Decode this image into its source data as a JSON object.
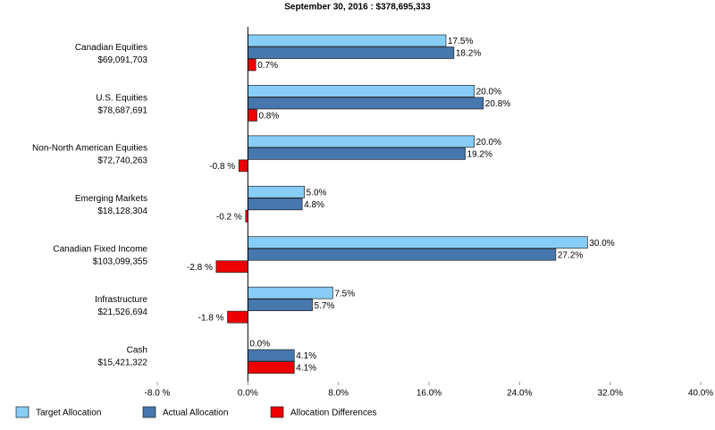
{
  "chart_data": {
    "type": "hbar",
    "title": "September 30, 2016 : $378,695,333",
    "categories": [
      "Canadian Equities",
      "U.S. Equities",
      "Non-North American Equities",
      "Emerging Markets",
      "Canadian Fixed Income",
      "Infrastructure",
      "Cash"
    ],
    "category_amounts": [
      "$69,091,703",
      "$78,687,691",
      "$72,740,263",
      "$18,128,304",
      "$103,099,355",
      "$21,526,694",
      "$15,421,322"
    ],
    "series": [
      {
        "name": "Target Allocation",
        "color": "#87cdf7",
        "values": [
          17.5,
          20.0,
          20.0,
          5.0,
          30.0,
          7.5,
          0.0
        ],
        "value_labels": [
          "17.5%",
          "20.0%",
          "20.0%",
          "5.0%",
          "30.0%",
          "7.5%",
          "0.0%"
        ]
      },
      {
        "name": "Actual Allocation",
        "color": "#4677ad",
        "values": [
          18.2,
          20.8,
          19.2,
          4.8,
          27.2,
          5.7,
          4.1
        ],
        "value_labels": [
          "18.2%",
          "20.8%",
          "19.2%",
          "4.8%",
          "27.2%",
          "5.7%",
          "4.1%"
        ]
      },
      {
        "name": "Allocation Differences",
        "color": "#ee0000",
        "values": [
          0.7,
          0.8,
          -0.8,
          -0.2,
          -2.8,
          -1.8,
          4.1
        ],
        "value_labels": [
          "0.7%",
          "0.8%",
          "-0.8 %",
          "-0.2 %",
          "-2.8 %",
          "-1.8 %",
          "4.1%"
        ]
      }
    ],
    "xlim": [
      -8,
      40
    ],
    "xticks": [
      {
        "value": -8,
        "label": "-8.0 %"
      },
      {
        "value": 0,
        "label": "0.0%"
      },
      {
        "value": 8,
        "label": "8.0%"
      },
      {
        "value": 16,
        "label": "16.0%"
      },
      {
        "value": 24,
        "label": "24.0%"
      },
      {
        "value": 32,
        "label": "32.0%"
      },
      {
        "value": 40,
        "label": "40.0%"
      }
    ]
  }
}
